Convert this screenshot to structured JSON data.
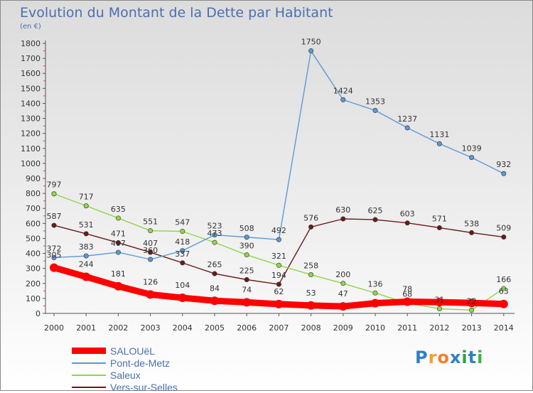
{
  "title": "Evolution du Montant de la Dette par Habitant",
  "subtitle": "(en €)",
  "brand": {
    "letters": [
      "P",
      "r",
      "o",
      "x",
      "i",
      "t",
      "i"
    ],
    "colors": [
      "#2f7fc8",
      "#f0a030",
      "#f08030",
      "#2f7fc8",
      "#30a040",
      "#2f7fc8",
      "#40b040"
    ]
  },
  "chart_data": {
    "type": "line",
    "title": "Evolution du Montant de la Dette par Habitant",
    "ylabel": "(en €)",
    "x": [
      "2000",
      "2001",
      "2002",
      "2003",
      "2004",
      "2005",
      "2006",
      "2007",
      "2008",
      "2009",
      "2010",
      "2011",
      "2012",
      "2013",
      "2014"
    ],
    "ylim": [
      0,
      1800
    ],
    "yticks": [
      "0",
      "100",
      "200",
      "300",
      "400",
      "500",
      "600",
      "700",
      "800",
      "900",
      "1000",
      "1100",
      "1200",
      "1300",
      "1400",
      "1500",
      "1600",
      "1700",
      "1800"
    ],
    "grid": false,
    "legend": "bottom-left",
    "series": [
      {
        "name": "Vers-sur-Selles",
        "color": "#6b1a1a",
        "values": [
          587,
          531,
          471,
          407,
          337,
          265,
          225,
          194,
          576,
          630,
          625,
          603,
          571,
          538,
          509
        ],
        "labels": [
          "587",
          "531",
          "471",
          "407",
          "337",
          "265",
          "225",
          "194",
          "576",
          "630",
          "625",
          "603",
          "571",
          "538",
          "509"
        ]
      },
      {
        "name": "Saleux",
        "color": "#8fd64a",
        "values": [
          797,
          717,
          635,
          551,
          547,
          473,
          390,
          321,
          258,
          200,
          136,
          68,
          31,
          22,
          166
        ],
        "labels": [
          "797",
          "717",
          "635",
          "551",
          "547",
          "473",
          "390",
          "321",
          "258",
          "200",
          "136",
          "68",
          "31",
          "22",
          "166"
        ]
      },
      {
        "name": "Pont-de-Metz",
        "color": "#5b9ad6",
        "values": [
          372,
          383,
          407,
          360,
          418,
          523,
          508,
          492,
          1750,
          1424,
          1353,
          1237,
          1131,
          1039,
          932
        ],
        "labels": [
          "372",
          "383",
          "407",
          "360",
          "418",
          "523",
          "508",
          "492",
          "1750",
          "1424",
          "1353",
          "1237",
          "1131",
          "1039",
          "932"
        ]
      },
      {
        "name": "SALOUëL",
        "color": "#ff0000",
        "values": [
          305,
          244,
          181,
          126,
          104,
          84,
          74,
          62,
          53,
          47,
          68,
          78,
          75,
          70,
          63
        ],
        "labels": [
          "305",
          "244",
          "181",
          "126",
          "104",
          "84",
          "74",
          "62",
          "53",
          "47",
          "",
          "78",
          "",
          "",
          "63"
        ]
      }
    ],
    "legend_entries": [
      {
        "name": "SALOUëL",
        "color": "#ff0000"
      },
      {
        "name": "Pont-de-Metz",
        "color": "#5b9ad6"
      },
      {
        "name": "Saleux",
        "color": "#8fd64a"
      },
      {
        "name": "Vers-sur-Selles",
        "color": "#6b1a1a"
      }
    ]
  }
}
